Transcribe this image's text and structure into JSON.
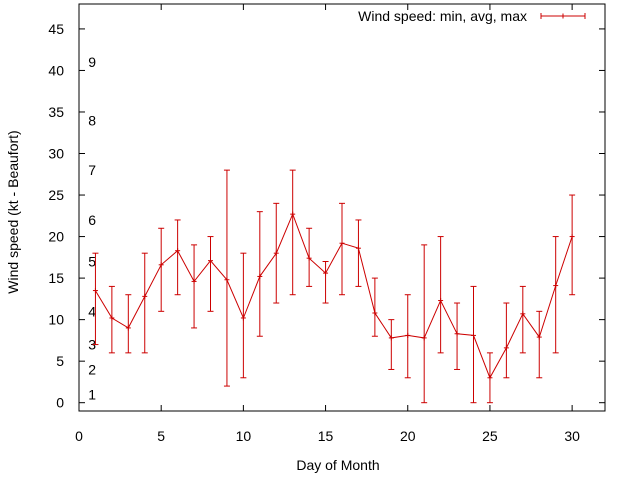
{
  "chart_data": {
    "type": "line",
    "title": "",
    "xlabel": "Day of Month",
    "ylabel": "Wind speed (kt - Beaufort)",
    "xlim": [
      0,
      32
    ],
    "ylim": [
      -1,
      48
    ],
    "grid": false,
    "legend_position": "top-right",
    "x_ticks": [
      0,
      5,
      10,
      15,
      20,
      25,
      30
    ],
    "y_ticks": [
      0,
      5,
      10,
      15,
      20,
      25,
      30,
      35,
      40,
      45
    ],
    "beaufort_labels": [
      {
        "label": "1",
        "value": 1
      },
      {
        "label": "2",
        "value": 4
      },
      {
        "label": "3",
        "value": 7
      },
      {
        "label": "4",
        "value": 11
      },
      {
        "label": "5",
        "value": 17
      },
      {
        "label": "6",
        "value": 22
      },
      {
        "label": "7",
        "value": 28
      },
      {
        "label": "8",
        "value": 34
      },
      {
        "label": "9",
        "value": 41
      }
    ],
    "series": [
      {
        "name": "Wind speed: min, avg, max",
        "color": "#cc0000",
        "x": [
          1,
          2,
          3,
          4,
          5,
          6,
          7,
          8,
          9,
          10,
          11,
          12,
          13,
          14,
          15,
          16,
          17,
          18,
          19,
          20,
          21,
          22,
          23,
          24,
          25,
          26,
          27,
          28,
          29,
          30
        ],
        "avg": [
          13.5,
          10.2,
          9,
          12.8,
          16.6,
          18.3,
          14.6,
          17.1,
          14.8,
          10.2,
          15.2,
          18,
          22.7,
          17.4,
          15.6,
          19.2,
          18.6,
          10.8,
          7.8,
          8.1,
          7.8,
          12.3,
          8.3,
          8.1,
          3,
          6.6,
          10.7,
          7.9,
          14.1,
          20
        ],
        "min": [
          7,
          6,
          6,
          6,
          11,
          13,
          9,
          11,
          2,
          3,
          8,
          12,
          13,
          14,
          12,
          13,
          14,
          8,
          4,
          3,
          0,
          6,
          4,
          0,
          0,
          3,
          6,
          3,
          6,
          13
        ],
        "max": [
          18,
          14,
          13,
          18,
          21,
          22,
          19,
          20,
          28,
          18,
          23,
          24,
          28,
          21,
          17,
          24,
          22,
          15,
          10,
          13,
          19,
          20,
          12,
          14,
          6,
          12,
          14,
          11,
          20,
          25
        ]
      }
    ]
  }
}
